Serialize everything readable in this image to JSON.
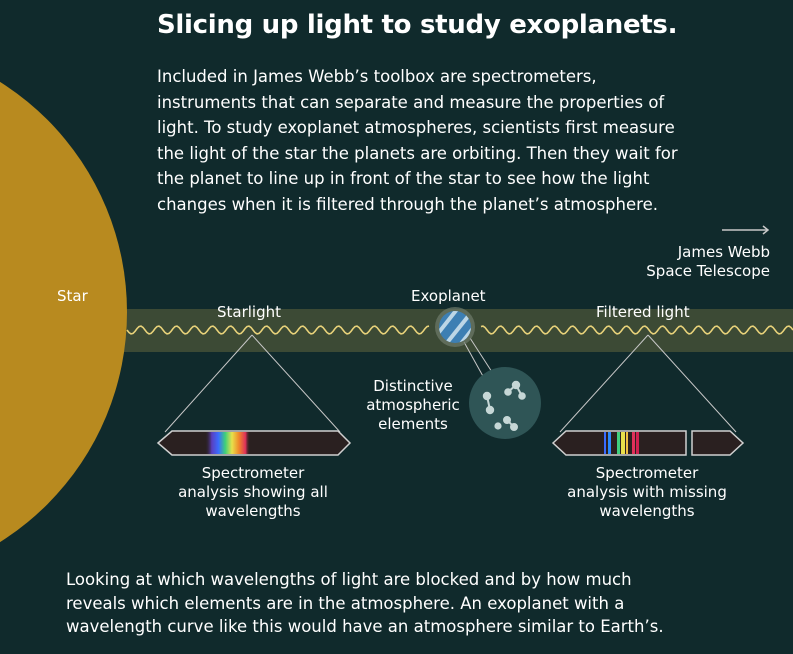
{
  "title": "Slicing up light to study exoplanets.",
  "intro_lines": [
    "Included in James Webb’s toolbox are spectrometers,",
    "instruments that can separate and measure the properties of",
    "light. To study exoplanet atmospheres, scientists first measure",
    "the light of the star the planets are orbiting. Then they wait for",
    "the planet to line up in front of the star to see how the light",
    "changes when it is filtered through the planet’s atmosphere."
  ],
  "labels": {
    "star": "Star",
    "starlight": "Starlight",
    "exoplanet": "Exoplanet",
    "filtered_light": "Filtered light",
    "telescope": [
      "James Webb",
      "Space Telescope"
    ],
    "elements": [
      "Distinctive",
      "atmospheric",
      "elements"
    ],
    "spectrometer_all": [
      "Spectrometer",
      "analysis showing all",
      "wavelengths"
    ],
    "spectrometer_missing": [
      "Spectrometer",
      "analysis with missing",
      "wavelengths"
    ]
  },
  "footer_lines": [
    "Looking at which wavelengths of light are blocked and by how much",
    "reveals which elements are in the atmosphere. An exoplanet with a",
    "wavelength curve like this would have an atmosphere similar to Earth’s."
  ],
  "colors": {
    "background": "#102a2c",
    "star": "#b88a1f",
    "light_band": "#3c4a35",
    "wave": "#e8d27a",
    "planet_blue": "#3d7fb3",
    "spectrometer_bar": "#2a2020"
  }
}
